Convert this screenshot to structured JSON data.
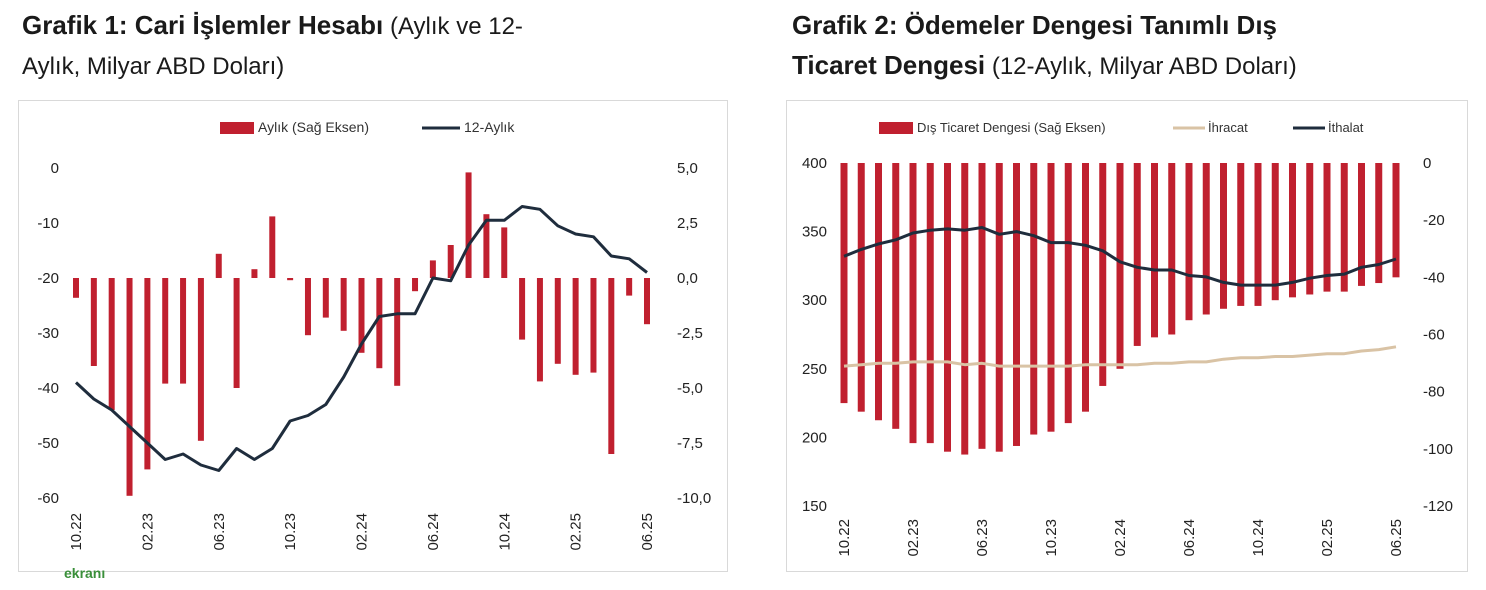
{
  "chart1": {
    "title_bold": "Grafik 1: Cari İşlemler Hesabı",
    "title_rest_1": " (Aylık ve 12-",
    "title_rest_2": "Aylık, Milyar ABD Doları)",
    "legend": {
      "bar": "Aylık (Sağ Eksen)",
      "line": "12-Aylık"
    },
    "colors": {
      "bar": "#c0202f",
      "line": "#1f2d3d"
    }
  },
  "chart2": {
    "title_bold_1": "Grafik 2: Ödemeler Dengesi Tanımlı Dış",
    "title_bold_2": "Ticaret Dengesi",
    "title_rest": " (12-Aylık, Milyar ABD Doları)",
    "legend": {
      "bar": "Dış Ticaret Dengesi (Sağ Eksen)",
      "line1": "İhracat",
      "line2": "İthalat"
    },
    "colors": {
      "bar": "#c0202f",
      "export": "#d9c3a5",
      "import": "#1f2d3d"
    }
  },
  "logo_text": "ekranı",
  "chart_data": [
    {
      "type": "bar",
      "title": "Grafik 1: Cari İşlemler Hesabı (Aylık ve 12-Aylık, Milyar ABD Doları)",
      "x": [
        "10.22",
        "11.22",
        "12.22",
        "01.23",
        "02.23",
        "03.23",
        "04.23",
        "05.23",
        "06.23",
        "07.23",
        "08.23",
        "09.23",
        "10.23",
        "11.23",
        "12.23",
        "01.24",
        "02.24",
        "03.24",
        "04.24",
        "05.24",
        "06.24",
        "07.24",
        "08.24",
        "09.24",
        "10.24",
        "11.24",
        "12.24",
        "01.25",
        "02.25",
        "03.25",
        "04.25",
        "05.25",
        "06.25"
      ],
      "x_ticks": [
        "10.22",
        "02.23",
        "06.23",
        "10.23",
        "02.24",
        "06.24",
        "10.24",
        "02.25",
        "06.25"
      ],
      "y_left": {
        "min": -60,
        "max": 0,
        "ticks": [
          0,
          -10,
          -20,
          -30,
          -40,
          -50,
          -60
        ]
      },
      "y_right": {
        "min": -10,
        "max": 5,
        "ticks": [
          "5,0",
          "2,5",
          "0,0",
          "-2,5",
          "-5,0",
          "-7,5",
          "-10,0"
        ]
      },
      "series": [
        {
          "name": "Aylık (Sağ Eksen)",
          "type": "bar",
          "axis": "right",
          "values": [
            -0.9,
            -4.0,
            -6.0,
            -9.9,
            -8.7,
            -4.8,
            -4.8,
            -7.4,
            1.1,
            -5.0,
            0.4,
            2.8,
            -0.1,
            -2.6,
            -1.8,
            -2.4,
            -3.4,
            -4.1,
            -4.9,
            -0.6,
            0.8,
            1.5,
            4.8,
            2.9,
            2.3,
            -2.8,
            -4.7,
            -3.9,
            -4.4,
            -4.3,
            -8.0,
            -0.8,
            -2.1
          ]
        },
        {
          "name": "12-Aylık",
          "type": "line",
          "axis": "left",
          "values": [
            -39,
            -42,
            -44,
            -47,
            -50,
            -53,
            -52,
            -54,
            -55,
            -51,
            -53,
            -51,
            -46,
            -45,
            -43,
            -38,
            -32,
            -27,
            -26.5,
            -26.5,
            -20,
            -20.5,
            -14,
            -9.5,
            -9.5,
            -7,
            -7.5,
            -10.5,
            -12,
            -12.5,
            -16,
            -16.5,
            -19
          ]
        }
      ]
    },
    {
      "type": "bar",
      "title": "Grafik 2: Ödemeler Dengesi Tanımlı Dış Ticaret Dengesi (12-Aylık, Milyar ABD Doları)",
      "x": [
        "10.22",
        "11.22",
        "12.22",
        "01.23",
        "02.23",
        "03.23",
        "04.23",
        "05.23",
        "06.23",
        "07.23",
        "08.23",
        "09.23",
        "10.23",
        "11.23",
        "12.23",
        "01.24",
        "02.24",
        "03.24",
        "04.24",
        "05.24",
        "06.24",
        "07.24",
        "08.24",
        "09.24",
        "10.24",
        "11.24",
        "12.24",
        "01.25",
        "02.25",
        "03.25",
        "04.25",
        "05.25",
        "06.25"
      ],
      "x_ticks": [
        "10.22",
        "02.23",
        "06.23",
        "10.23",
        "02.24",
        "06.24",
        "10.24",
        "02.25",
        "06.25"
      ],
      "y_left": {
        "min": 150,
        "max": 400,
        "ticks": [
          400,
          350,
          300,
          250,
          200,
          150
        ]
      },
      "y_right": {
        "min": -120,
        "max": 0,
        "ticks": [
          0,
          -20,
          -40,
          -60,
          -80,
          -100,
          -120
        ]
      },
      "series": [
        {
          "name": "Dış Ticaret Dengesi (Sağ Eksen)",
          "type": "bar",
          "axis": "right",
          "values": [
            -84,
            -87,
            -90,
            -93,
            -98,
            -98,
            -101,
            -102,
            -100,
            -101,
            -99,
            -95,
            -94,
            -91,
            -87,
            -78,
            -72,
            -64,
            -61,
            -60,
            -55,
            -53,
            -51,
            -50,
            -50,
            -48,
            -47,
            -46,
            -45,
            -45,
            -43,
            -42,
            -40
          ]
        },
        {
          "name": "İhracat",
          "type": "line",
          "axis": "left",
          "values": [
            252,
            253,
            254,
            254,
            255,
            255,
            255,
            253,
            254,
            252,
            252,
            252,
            252,
            252,
            253,
            253,
            253,
            253,
            254,
            254,
            255,
            255,
            257,
            258,
            258,
            259,
            259,
            260,
            261,
            261,
            263,
            264,
            266
          ]
        },
        {
          "name": "İthalat",
          "type": "line",
          "axis": "left",
          "values": [
            332,
            337,
            341,
            344,
            349,
            351,
            352,
            351,
            353,
            348,
            350,
            347,
            342,
            342,
            340,
            336,
            328,
            324,
            322,
            322,
            318,
            317,
            313,
            311,
            311,
            311,
            313,
            316,
            318,
            319,
            324,
            326,
            330
          ]
        }
      ]
    }
  ]
}
